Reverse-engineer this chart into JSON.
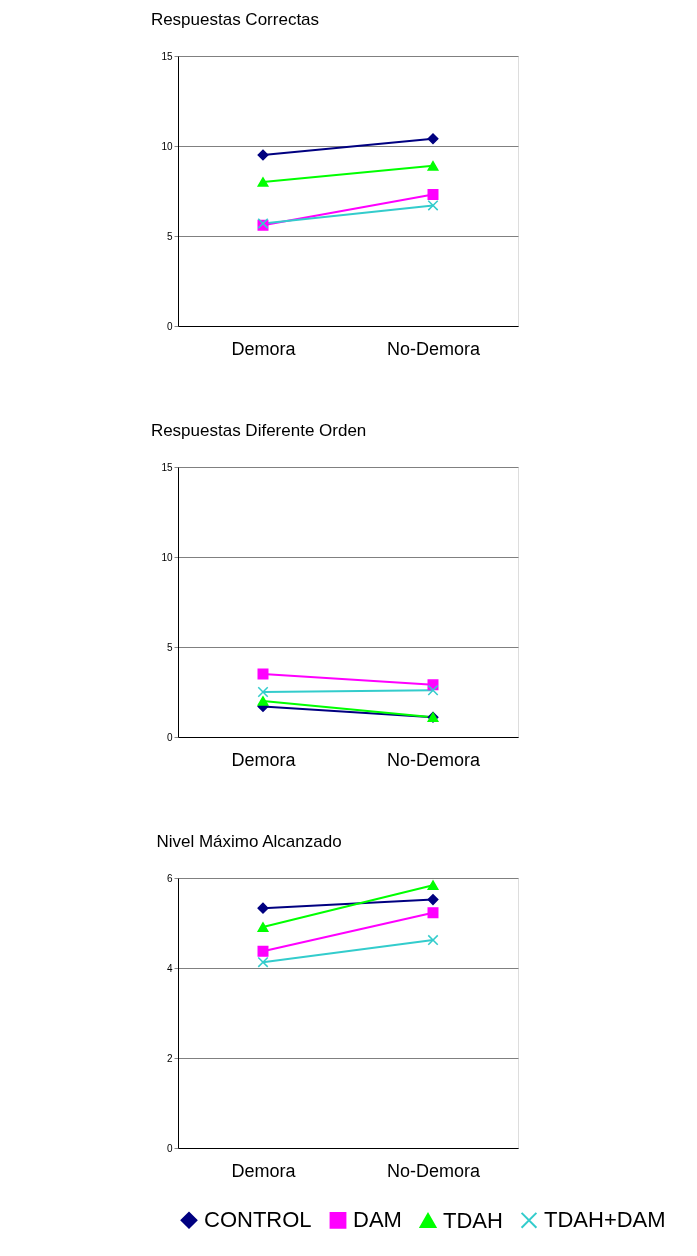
{
  "chart_data": [
    {
      "type": "line",
      "title": "Respuestas Correctas",
      "categories": [
        "Demora",
        "No-Demora"
      ],
      "ylim": [
        0,
        15
      ],
      "yticks": [
        0,
        5,
        10,
        15
      ],
      "grid": "y",
      "legend": "bottom",
      "series": [
        {
          "name": "CONTROL",
          "color": "#000080",
          "marker": "diamond",
          "values": [
            9.5,
            10.4
          ]
        },
        {
          "name": "DAM",
          "color": "#ff00ff",
          "marker": "square",
          "values": [
            5.6,
            7.3
          ]
        },
        {
          "name": "TDAH",
          "color": "#00ff00",
          "marker": "triangle",
          "values": [
            8.0,
            8.9
          ]
        },
        {
          "name": "TDAH+DAM",
          "color": "#33cccc",
          "marker": "cross",
          "values": [
            5.7,
            6.7
          ]
        }
      ]
    },
    {
      "type": "line",
      "title": "Respuestas Diferente Orden",
      "categories": [
        "Demora",
        "No-Demora"
      ],
      "ylim": [
        0,
        15
      ],
      "yticks": [
        0,
        5,
        10,
        15
      ],
      "grid": "y",
      "legend": "bottom",
      "series": [
        {
          "name": "CONTROL",
          "color": "#000080",
          "marker": "diamond",
          "values": [
            1.7,
            1.1
          ]
        },
        {
          "name": "DAM",
          "color": "#ff00ff",
          "marker": "square",
          "values": [
            3.5,
            2.9
          ]
        },
        {
          "name": "TDAH",
          "color": "#00ff00",
          "marker": "triangle",
          "values": [
            2.0,
            1.1
          ]
        },
        {
          "name": "TDAH+DAM",
          "color": "#33cccc",
          "marker": "cross",
          "values": [
            2.5,
            2.6
          ]
        }
      ]
    },
    {
      "type": "line",
      "title": "Nivel Máximo Alcanzado",
      "categories": [
        "Demora",
        "No-Demora"
      ],
      "ylim": [
        0,
        6
      ],
      "yticks": [
        0,
        2,
        4,
        6
      ],
      "grid": "y",
      "legend": "bottom",
      "series": [
        {
          "name": "CONTROL",
          "color": "#000080",
          "marker": "diamond",
          "values": [
            5.33,
            5.52
          ]
        },
        {
          "name": "DAM",
          "color": "#ff00ff",
          "marker": "square",
          "values": [
            4.37,
            5.23
          ]
        },
        {
          "name": "TDAH",
          "color": "#00ff00",
          "marker": "triangle",
          "values": [
            4.91,
            5.84
          ]
        },
        {
          "name": "TDAH+DAM",
          "color": "#33cccc",
          "marker": "cross",
          "values": [
            4.13,
            4.62
          ]
        }
      ]
    }
  ]
}
